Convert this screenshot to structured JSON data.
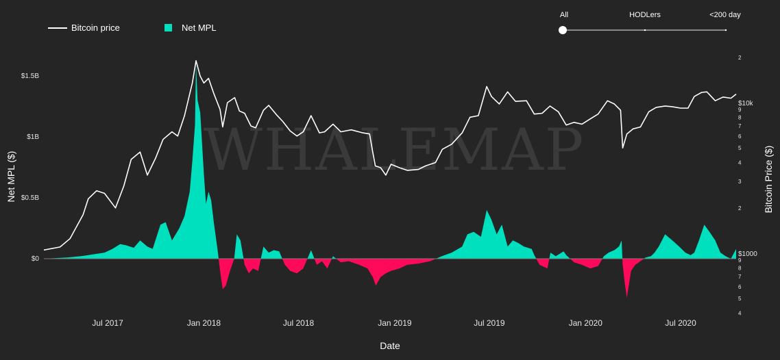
{
  "legend": {
    "price_label": "Bitcoin price",
    "mpl_label": "Net MPL"
  },
  "slider": {
    "labels": [
      "All",
      "HODLers",
      "<200 day"
    ],
    "selected": "All"
  },
  "watermark": "WHALEMAP",
  "colors": {
    "background": "#252525",
    "price_line": "#ffffff",
    "positive": "#00e0bf",
    "negative": "#ff0a5a"
  },
  "chart_data": {
    "type": "area",
    "title": "",
    "xlabel": "Date",
    "ylabel_left": "Net MPL ($)",
    "ylabel_right": "Bitcoin Price ($)",
    "x_ticks": [
      "Jul 2017",
      "Jan 2018",
      "Jul 2018",
      "Jan 2019",
      "Jul 2019",
      "Jan 2020",
      "Jul 2020"
    ],
    "x_range": [
      "2017-03-01",
      "2020-10-15"
    ],
    "y_left": {
      "ticks": [
        {
          "value": 0,
          "label": "$0"
        },
        {
          "value": 0.5,
          "label": "$0.5B"
        },
        {
          "value": 1,
          "label": "$1B"
        },
        {
          "value": 1.5,
          "label": "$1.5B"
        }
      ],
      "unit": "billions USD",
      "range": [
        -0.45,
        1.62
      ]
    },
    "y_right": {
      "scale": "log",
      "range": [
        380,
        27000
      ],
      "major_ticks": [
        {
          "value": 1000,
          "label": "$1000"
        },
        {
          "value": 10000,
          "label": "$10k"
        }
      ],
      "minor_ticks": [
        {
          "value": 400,
          "label": "4"
        },
        {
          "value": 500,
          "label": "5"
        },
        {
          "value": 600,
          "label": "6"
        },
        {
          "value": 700,
          "label": "7"
        },
        {
          "value": 800,
          "label": "8"
        },
        {
          "value": 900,
          "label": "9"
        },
        {
          "value": 2000,
          "label": "2"
        },
        {
          "value": 3000,
          "label": "3"
        },
        {
          "value": 4000,
          "label": "4"
        },
        {
          "value": 5000,
          "label": "5"
        },
        {
          "value": 6000,
          "label": "6"
        },
        {
          "value": 7000,
          "label": "7"
        },
        {
          "value": 8000,
          "label": "8"
        },
        {
          "value": 9000,
          "label": "9"
        },
        {
          "value": 20000,
          "label": "2"
        }
      ]
    },
    "series": [
      {
        "name": "Bitcoin price",
        "kind": "line",
        "x": [
          "2017-03-01",
          "2017-04-01",
          "2017-04-20",
          "2017-05-15",
          "2017-05-25",
          "2017-06-10",
          "2017-06-25",
          "2017-07-16",
          "2017-08-01",
          "2017-08-15",
          "2017-09-01",
          "2017-09-15",
          "2017-10-01",
          "2017-10-15",
          "2017-11-01",
          "2017-11-12",
          "2017-11-25",
          "2017-12-10",
          "2017-12-17",
          "2017-12-25",
          "2018-01-01",
          "2018-01-10",
          "2018-01-20",
          "2018-02-01",
          "2018-02-06",
          "2018-02-15",
          "2018-03-01",
          "2018-03-10",
          "2018-03-20",
          "2018-04-01",
          "2018-04-10",
          "2018-04-25",
          "2018-05-05",
          "2018-05-20",
          "2018-06-01",
          "2018-06-15",
          "2018-06-28",
          "2018-07-10",
          "2018-07-25",
          "2018-08-10",
          "2018-08-20",
          "2018-09-05",
          "2018-09-20",
          "2018-10-10",
          "2018-11-01",
          "2018-11-14",
          "2018-11-20",
          "2018-11-25",
          "2018-12-05",
          "2018-12-15",
          "2018-12-25",
          "2019-01-10",
          "2019-01-25",
          "2019-02-15",
          "2019-03-01",
          "2019-03-20",
          "2019-04-02",
          "2019-04-20",
          "2019-05-10",
          "2019-05-25",
          "2019-06-10",
          "2019-06-26",
          "2019-07-05",
          "2019-07-20",
          "2019-08-05",
          "2019-08-20",
          "2019-09-10",
          "2019-09-25",
          "2019-10-10",
          "2019-10-25",
          "2019-11-10",
          "2019-11-25",
          "2019-12-10",
          "2019-12-25",
          "2020-01-10",
          "2020-01-25",
          "2020-02-12",
          "2020-02-25",
          "2020-03-08",
          "2020-03-12",
          "2020-03-20",
          "2020-04-01",
          "2020-04-15",
          "2020-05-01",
          "2020-05-15",
          "2020-06-01",
          "2020-06-15",
          "2020-07-01",
          "2020-07-15",
          "2020-07-27",
          "2020-08-10",
          "2020-08-20",
          "2020-09-05",
          "2020-09-20",
          "2020-10-05",
          "2020-10-15"
        ],
        "values": [
          1050,
          1100,
          1250,
          1800,
          2300,
          2600,
          2500,
          2000,
          2800,
          4200,
          4700,
          3300,
          4300,
          5700,
          6400,
          6000,
          8200,
          13500,
          19000,
          15000,
          13500,
          14500,
          11500,
          9000,
          6900,
          10000,
          10800,
          8800,
          8500,
          7000,
          6800,
          8900,
          9600,
          8300,
          7500,
          6500,
          6000,
          6400,
          8200,
          6300,
          6400,
          7200,
          6400,
          6600,
          6300,
          6200,
          4700,
          3800,
          3700,
          3300,
          3900,
          3700,
          3550,
          3600,
          3800,
          4000,
          4900,
          5300,
          6300,
          8000,
          8200,
          12800,
          11000,
          9800,
          11800,
          10200,
          10300,
          8400,
          8500,
          9500,
          8700,
          7100,
          7400,
          7200,
          7800,
          8400,
          10300,
          9800,
          8900,
          5000,
          6200,
          6700,
          6900,
          8700,
          9300,
          9500,
          9400,
          9200,
          9200,
          11000,
          11700,
          11800,
          10300,
          10900,
          10700,
          11400
        ]
      },
      {
        "name": "Net MPL",
        "kind": "area",
        "unit": "billions USD",
        "x": [
          "2017-03-01",
          "2017-04-15",
          "2017-05-10",
          "2017-05-25",
          "2017-06-10",
          "2017-06-25",
          "2017-07-10",
          "2017-07-25",
          "2017-08-05",
          "2017-08-20",
          "2017-09-01",
          "2017-09-15",
          "2017-09-25",
          "2017-10-10",
          "2017-10-20",
          "2017-11-01",
          "2017-11-15",
          "2017-11-25",
          "2017-12-05",
          "2017-12-10",
          "2017-12-15",
          "2017-12-17",
          "2017-12-20",
          "2017-12-25",
          "2018-01-01",
          "2018-01-05",
          "2018-01-10",
          "2018-01-15",
          "2018-01-20",
          "2018-01-28",
          "2018-02-01",
          "2018-02-06",
          "2018-02-12",
          "2018-02-20",
          "2018-02-28",
          "2018-03-05",
          "2018-03-12",
          "2018-03-20",
          "2018-03-28",
          "2018-04-05",
          "2018-04-15",
          "2018-04-25",
          "2018-05-05",
          "2018-05-15",
          "2018-05-25",
          "2018-06-05",
          "2018-06-15",
          "2018-06-28",
          "2018-07-10",
          "2018-07-25",
          "2018-08-05",
          "2018-08-15",
          "2018-08-25",
          "2018-09-05",
          "2018-09-20",
          "2018-10-05",
          "2018-10-25",
          "2018-11-10",
          "2018-11-20",
          "2018-11-26",
          "2018-12-05",
          "2018-12-15",
          "2018-12-25",
          "2019-01-10",
          "2019-01-25",
          "2019-02-15",
          "2019-03-10",
          "2019-04-01",
          "2019-04-20",
          "2019-05-10",
          "2019-05-20",
          "2019-06-01",
          "2019-06-15",
          "2019-06-26",
          "2019-07-05",
          "2019-07-15",
          "2019-07-25",
          "2019-08-05",
          "2019-08-15",
          "2019-08-25",
          "2019-09-05",
          "2019-09-20",
          "2019-09-25",
          "2019-10-05",
          "2019-10-20",
          "2019-10-26",
          "2019-11-05",
          "2019-11-20",
          "2019-11-25",
          "2019-12-10",
          "2019-12-25",
          "2020-01-10",
          "2020-01-25",
          "2020-02-05",
          "2020-02-14",
          "2020-02-25",
          "2020-03-05",
          "2020-03-10",
          "2020-03-12",
          "2020-03-16",
          "2020-03-20",
          "2020-03-28",
          "2020-04-05",
          "2020-04-15",
          "2020-04-25",
          "2020-05-05",
          "2020-05-12",
          "2020-05-20",
          "2020-06-01",
          "2020-06-15",
          "2020-06-28",
          "2020-07-10",
          "2020-07-20",
          "2020-07-27",
          "2020-08-05",
          "2020-08-15",
          "2020-08-25",
          "2020-09-05",
          "2020-09-15",
          "2020-09-25",
          "2020-10-05",
          "2020-10-15"
        ],
        "values": [
          0.0,
          0.01,
          0.02,
          0.03,
          0.04,
          0.05,
          0.08,
          0.12,
          0.11,
          0.09,
          0.15,
          0.1,
          0.08,
          0.28,
          0.3,
          0.15,
          0.25,
          0.35,
          0.55,
          0.8,
          1.1,
          1.6,
          1.3,
          1.2,
          0.7,
          0.45,
          0.55,
          0.48,
          0.3,
          0.05,
          -0.1,
          -0.25,
          -0.22,
          -0.1,
          0.0,
          0.2,
          0.15,
          -0.05,
          -0.12,
          -0.08,
          -0.1,
          0.1,
          0.05,
          0.07,
          0.06,
          -0.05,
          -0.1,
          -0.12,
          -0.08,
          0.07,
          -0.05,
          -0.02,
          -0.08,
          0.02,
          -0.03,
          -0.02,
          -0.05,
          -0.08,
          -0.15,
          -0.22,
          -0.15,
          -0.12,
          -0.1,
          -0.08,
          -0.05,
          -0.04,
          -0.02,
          0.02,
          0.05,
          0.1,
          0.2,
          0.22,
          0.18,
          0.4,
          0.32,
          0.2,
          0.28,
          0.1,
          0.15,
          0.13,
          0.1,
          0.08,
          0.03,
          -0.05,
          -0.08,
          0.05,
          0.02,
          0.06,
          0.03,
          -0.03,
          -0.05,
          -0.08,
          -0.06,
          0.02,
          0.05,
          0.07,
          0.1,
          0.15,
          -0.05,
          -0.2,
          -0.32,
          -0.1,
          -0.05,
          -0.02,
          0.01,
          0.02,
          0.05,
          0.1,
          0.2,
          0.15,
          0.1,
          0.05,
          0.03,
          0.05,
          0.15,
          0.28,
          0.22,
          0.15,
          0.05,
          0.02,
          0.0,
          0.08
        ]
      }
    ]
  }
}
